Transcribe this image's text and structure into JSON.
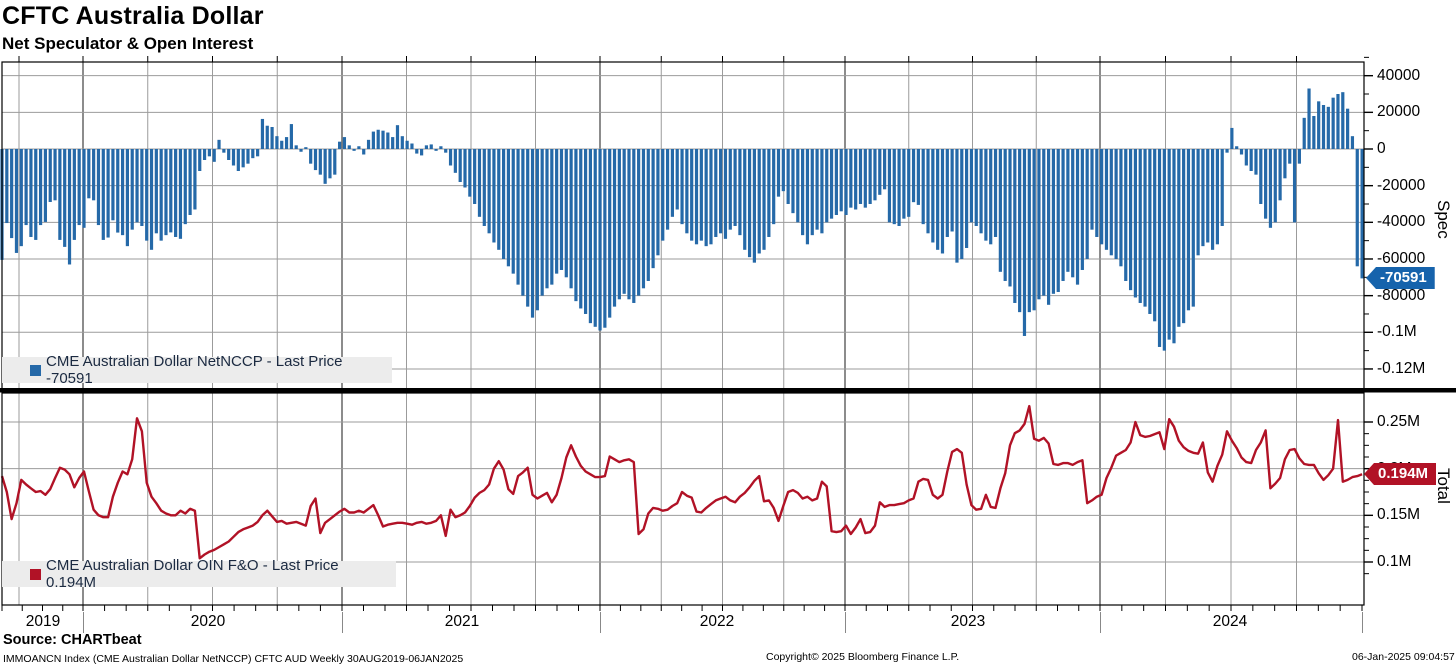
{
  "header": {
    "title": "CFTC Australia Dollar",
    "subtitle": "Net Speculator & Open Interest"
  },
  "spec_panel": {
    "legend_label": "CME Australian Dollar NetNCCP - Last Price -70591",
    "axis_label": "Spec",
    "tick_labels": [
      "40000",
      "20000",
      "0",
      "-20000",
      "-40000",
      "-60000",
      "-80000",
      "-0.1M",
      "-0.12M"
    ],
    "badge": "-70591"
  },
  "oi_panel": {
    "legend_label": "CME Australian Dollar OIN F&O - Last Price 0.194M",
    "axis_label": "Total",
    "tick_labels": [
      "0.25M",
      "0.2M",
      "0.15M",
      "0.1M"
    ],
    "badge": "0.194M"
  },
  "x_axis": {
    "year_labels": [
      "2019",
      "2020",
      "2021",
      "2022",
      "2023",
      "2024"
    ]
  },
  "footer": {
    "source": "Source: CHARTbeat",
    "meta": "IMMOANCN Index (CME Australian Dollar NetNCCP) CFTC AUD  Weekly 30AUG2019-06JAN2025",
    "copyright": "Copyright© 2025 Bloomberg Finance L.P.",
    "datetime": "06-Jan-2025 09:04:57"
  },
  "colors": {
    "bar": "#2569a8",
    "line": "#b11226",
    "badge_spec": "#1663ac",
    "badge_total": "#b11226",
    "grid": "#9b9b9b",
    "year_grid": "#4f4f4f",
    "frame": "#000000",
    "legend_bg": "#ececec",
    "legend_text": "#1b2a41"
  },
  "chart_data": [
    {
      "type": "bar",
      "name": "CME Australian Dollar NetNCCP",
      "axis": "Spec",
      "frequency": "weekly",
      "period": "30AUG2019-06JAN2025",
      "last_price": -70591,
      "ylim": [
        -125000,
        45000
      ],
      "yticks": [
        40000,
        20000,
        0,
        -20000,
        -40000,
        -60000,
        -80000,
        -100000,
        -120000
      ],
      "values": [
        -60500,
        -40400,
        -48600,
        -56700,
        -53000,
        -41500,
        -48000,
        -49600,
        -41500,
        -39800,
        -28900,
        -28000,
        -49600,
        -53400,
        -63000,
        -49600,
        -41500,
        -43000,
        -26900,
        -28000,
        -41500,
        -49600,
        -48300,
        -38900,
        -45600,
        -47000,
        -53000,
        -44000,
        -40000,
        -42000,
        -50000,
        -55000,
        -46000,
        -50000,
        -47000,
        -45500,
        -48000,
        -49000,
        -41000,
        -36000,
        -33000,
        -12000,
        -6000,
        -4000,
        -7000,
        5000,
        -2000,
        -6000,
        -9000,
        -12000,
        -10000,
        -8000,
        -5000,
        -4000,
        16400,
        12700,
        12000,
        7000,
        4500,
        6500,
        13600,
        2000,
        -1500,
        1000,
        -8000,
        -11500,
        -14000,
        -19000,
        -16000,
        -14000,
        4000,
        6500,
        2000,
        -1000,
        1500,
        -3000,
        5000,
        9500,
        10500,
        10000,
        9000,
        6500,
        13000,
        7000,
        4500,
        3000,
        -2500,
        -3500,
        2000,
        2500,
        -1000,
        1500,
        -2000,
        -9000,
        -13000,
        -18000,
        -21000,
        -26000,
        -30000,
        -37000,
        -42000,
        -46000,
        -51000,
        -55000,
        -60000,
        -64000,
        -68000,
        -74000,
        -80000,
        -86000,
        -92000,
        -88000,
        -80000,
        -76000,
        -74000,
        -68000,
        -66000,
        -70000,
        -76000,
        -83000,
        -87000,
        -90000,
        -95000,
        -97000,
        -99000,
        -97500,
        -92000,
        -86000,
        -82000,
        -79000,
        -82000,
        -84000,
        -80000,
        -76000,
        -72000,
        -65000,
        -58000,
        -50000,
        -44000,
        -37000,
        -33000,
        -41000,
        -46000,
        -50000,
        -52000,
        -50000,
        -53000,
        -52000,
        -48000,
        -46000,
        -49000,
        -44000,
        -42000,
        -47000,
        -55000,
        -59000,
        -62000,
        -57000,
        -55000,
        -48000,
        -41000,
        -26000,
        -23000,
        -30000,
        -35000,
        -40000,
        -47000,
        -52000,
        -47000,
        -44000,
        -46000,
        -40000,
        -38000,
        -36000,
        -34000,
        -36000,
        -32000,
        -33000,
        -30000,
        -32000,
        -30000,
        -28000,
        -25000,
        -22000,
        -40000,
        -41000,
        -42000,
        -38000,
        -37000,
        -29000,
        -30500,
        -41000,
        -46000,
        -51000,
        -55000,
        -57000,
        -48000,
        -45000,
        -62000,
        -60000,
        -54000,
        -40000,
        -42000,
        -46000,
        -50000,
        -52000,
        -48000,
        -67000,
        -72000,
        -75000,
        -84000,
        -89000,
        -102000,
        -89000,
        -88000,
        -82000,
        -80000,
        -85000,
        -79000,
        -78000,
        -72000,
        -67000,
        -70000,
        -74000,
        -66000,
        -60000,
        -44000,
        -48000,
        -52000,
        -55000,
        -58000,
        -60000,
        -64000,
        -72000,
        -77000,
        -81000,
        -84000,
        -86000,
        -90000,
        -94000,
        -108000,
        -110000,
        -104000,
        -106000,
        -97000,
        -95000,
        -88000,
        -86000,
        -58000,
        -53000,
        -51000,
        -55000,
        -52000,
        -42000,
        -2000,
        11500,
        1500,
        -3000,
        -9000,
        -12000,
        -14000,
        -30000,
        -38000,
        -43000,
        -40000,
        -28000,
        -16000,
        -8000,
        -40000,
        -8000,
        17000,
        33000,
        18000,
        26000,
        24000,
        23000,
        28000,
        30000,
        31000,
        22000,
        7000,
        -64000,
        -70591
      ]
    },
    {
      "type": "line",
      "name": "CME Australian Dollar OIN F&O",
      "axis": "Total",
      "unit": "millions of contracts",
      "frequency": "weekly",
      "period": "30AUG2019-06JAN2025",
      "last_price": "0.194M",
      "ylim": [
        0.08,
        0.28
      ],
      "yticks": [
        0.25,
        0.2,
        0.15,
        0.1
      ],
      "values": [
        0.192,
        0.175,
        0.146,
        0.163,
        0.188,
        0.183,
        0.179,
        0.175,
        0.176,
        0.172,
        0.178,
        0.19,
        0.201,
        0.199,
        0.194,
        0.18,
        0.19,
        0.197,
        0.176,
        0.156,
        0.15,
        0.148,
        0.148,
        0.17,
        0.185,
        0.197,
        0.194,
        0.21,
        0.254,
        0.24,
        0.185,
        0.17,
        0.163,
        0.155,
        0.152,
        0.15,
        0.15,
        0.155,
        0.152,
        0.157,
        0.155,
        0.104,
        0.108,
        0.111,
        0.113,
        0.116,
        0.119,
        0.122,
        0.127,
        0.132,
        0.135,
        0.137,
        0.139,
        0.143,
        0.15,
        0.155,
        0.149,
        0.143,
        0.144,
        0.141,
        0.142,
        0.143,
        0.141,
        0.139,
        0.16,
        0.168,
        0.131,
        0.142,
        0.146,
        0.15,
        0.154,
        0.157,
        0.153,
        0.153,
        0.155,
        0.153,
        0.157,
        0.161,
        0.15,
        0.138,
        0.14,
        0.141,
        0.142,
        0.142,
        0.141,
        0.14,
        0.142,
        0.143,
        0.141,
        0.142,
        0.144,
        0.15,
        0.128,
        0.156,
        0.148,
        0.15,
        0.153,
        0.16,
        0.169,
        0.174,
        0.177,
        0.183,
        0.2,
        0.208,
        0.199,
        0.178,
        0.173,
        0.192,
        0.196,
        0.201,
        0.172,
        0.168,
        0.171,
        0.174,
        0.164,
        0.172,
        0.19,
        0.212,
        0.225,
        0.213,
        0.203,
        0.197,
        0.194,
        0.191,
        0.191,
        0.192,
        0.213,
        0.21,
        0.207,
        0.209,
        0.21,
        0.207,
        0.13,
        0.135,
        0.152,
        0.158,
        0.157,
        0.155,
        0.156,
        0.16,
        0.163,
        0.175,
        0.171,
        0.169,
        0.154,
        0.153,
        0.158,
        0.162,
        0.166,
        0.168,
        0.17,
        0.166,
        0.164,
        0.17,
        0.174,
        0.18,
        0.187,
        0.192,
        0.165,
        0.166,
        0.158,
        0.144,
        0.16,
        0.175,
        0.177,
        0.174,
        0.168,
        0.17,
        0.166,
        0.168,
        0.186,
        0.181,
        0.133,
        0.132,
        0.133,
        0.139,
        0.13,
        0.137,
        0.146,
        0.131,
        0.132,
        0.139,
        0.164,
        0.159,
        0.161,
        0.161,
        0.162,
        0.163,
        0.166,
        0.168,
        0.186,
        0.189,
        0.188,
        0.172,
        0.168,
        0.172,
        0.197,
        0.218,
        0.221,
        0.217,
        0.183,
        0.161,
        0.156,
        0.157,
        0.172,
        0.159,
        0.158,
        0.179,
        0.195,
        0.225,
        0.238,
        0.241,
        0.248,
        0.267,
        0.232,
        0.23,
        0.233,
        0.227,
        0.205,
        0.204,
        0.206,
        0.206,
        0.204,
        0.207,
        0.209,
        0.163,
        0.166,
        0.17,
        0.172,
        0.19,
        0.201,
        0.214,
        0.217,
        0.22,
        0.228,
        0.25,
        0.236,
        0.234,
        0.235,
        0.237,
        0.239,
        0.221,
        0.253,
        0.245,
        0.23,
        0.223,
        0.219,
        0.217,
        0.216,
        0.228,
        0.196,
        0.186,
        0.203,
        0.215,
        0.24,
        0.23,
        0.222,
        0.212,
        0.207,
        0.206,
        0.22,
        0.228,
        0.241,
        0.179,
        0.184,
        0.19,
        0.21,
        0.22,
        0.221,
        0.211,
        0.205,
        0.204,
        0.204,
        0.195,
        0.188,
        0.193,
        0.2,
        0.252,
        0.186,
        0.188,
        0.191,
        0.192,
        0.194
      ]
    }
  ]
}
